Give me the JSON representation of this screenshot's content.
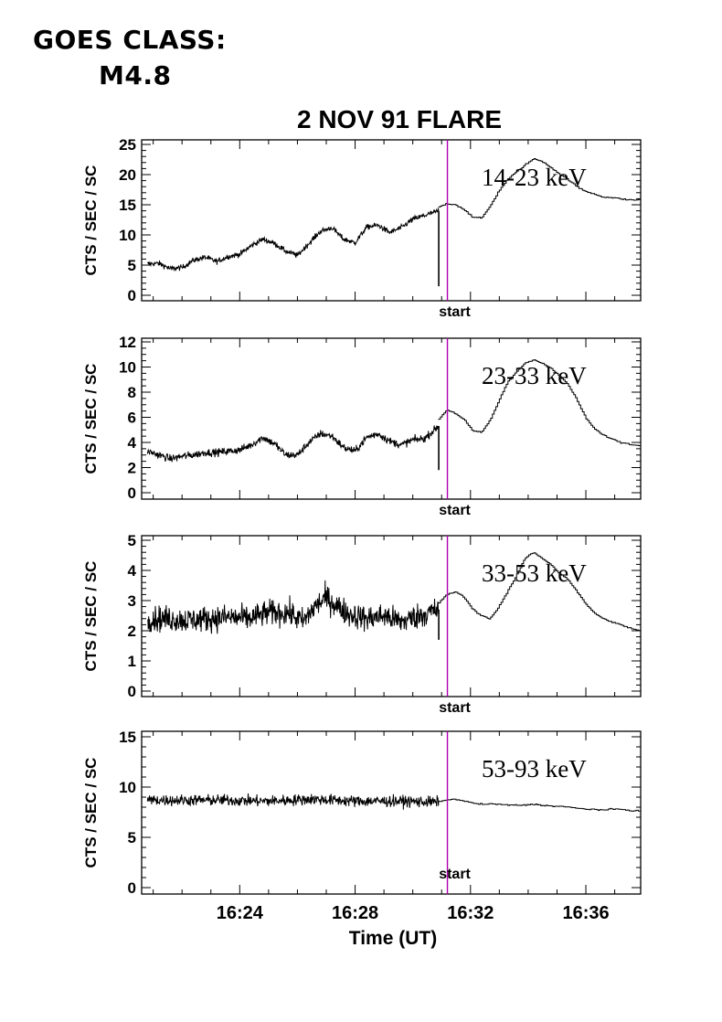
{
  "header": {
    "goes_line1": "GOES CLASS:",
    "goes_line2": "M4.8"
  },
  "colors": {
    "trace": "#000000",
    "start_marker": "#b200b2"
  },
  "chart_data": {
    "type": "line",
    "title": "2 NOV 91 FLARE",
    "xlabel": "Time (UT)",
    "ylabel": "CTS / SEC / SC",
    "x_unit": "minutes since 16:00 UT",
    "xlim": [
      20.6,
      37.9
    ],
    "x_tick_labels": [
      "16:24",
      "16:28",
      "16:32",
      "16:36"
    ],
    "x_tick_values": [
      24,
      28,
      32,
      36
    ],
    "x_minor_step": 1,
    "start_marker": {
      "x": 31.2,
      "label": "start"
    },
    "panels": [
      {
        "energy": "14-23 keV",
        "ylim": [
          0,
          25
        ],
        "yticks": [
          0,
          5,
          10,
          15,
          20,
          25
        ],
        "y_minor_step": 1,
        "spike": {
          "x": 30.9,
          "y_low": 1.5
        },
        "noisy_series": {
          "x_range": [
            20.8,
            30.9
          ],
          "noise": 0.45,
          "x": [
            20.8,
            21.2,
            21.6,
            22.0,
            22.4,
            22.8,
            23.2,
            23.6,
            24.0,
            24.4,
            24.8,
            25.2,
            25.6,
            26.0,
            26.4,
            26.8,
            27.2,
            27.6,
            28.0,
            28.4,
            28.8,
            29.2,
            29.6,
            30.0,
            30.4,
            30.9
          ],
          "y": [
            5.2,
            5.3,
            4.4,
            4.6,
            5.8,
            6.3,
            5.6,
            6.4,
            6.8,
            8.2,
            9.3,
            8.6,
            7.3,
            6.6,
            8.6,
            10.6,
            11.2,
            9.3,
            8.7,
            11.3,
            11.6,
            10.4,
            11.2,
            12.6,
            13.2,
            14.0
          ]
        },
        "step_series": {
          "x": [
            30.9,
            31.2,
            31.5,
            31.8,
            32.1,
            32.4,
            32.7,
            33.0,
            33.3,
            33.6,
            33.9,
            34.2,
            34.5,
            34.8,
            35.1,
            35.4,
            35.7,
            36.0,
            36.3,
            36.6,
            36.9,
            37.2,
            37.5,
            37.9
          ],
          "y": [
            14.6,
            15.2,
            15.0,
            14.2,
            12.9,
            12.8,
            14.8,
            17.3,
            19.2,
            20.4,
            21.6,
            22.6,
            22.2,
            21.2,
            20.1,
            19.2,
            18.0,
            17.2,
            16.8,
            16.3,
            16.2,
            16.0,
            15.8,
            15.8
          ]
        }
      },
      {
        "energy": "23-33 keV",
        "ylim": [
          0,
          12
        ],
        "yticks": [
          0,
          2,
          4,
          6,
          8,
          10,
          12
        ],
        "y_minor_step": 0.5,
        "spike": {
          "x": 30.9,
          "y_low": 1.8
        },
        "noisy_series": {
          "x_range": [
            20.8,
            30.9
          ],
          "noise": 0.3,
          "x": [
            20.8,
            21.2,
            21.6,
            22.0,
            22.4,
            22.8,
            23.2,
            23.6,
            24.0,
            24.4,
            24.8,
            25.2,
            25.6,
            26.0,
            26.4,
            26.8,
            27.2,
            27.6,
            28.0,
            28.4,
            28.8,
            29.2,
            29.6,
            30.0,
            30.4,
            30.9
          ],
          "y": [
            3.3,
            3.0,
            2.7,
            2.9,
            3.0,
            3.2,
            3.2,
            3.3,
            3.4,
            3.8,
            4.4,
            3.9,
            3.0,
            3.0,
            4.0,
            4.7,
            4.5,
            3.6,
            3.3,
            4.4,
            4.7,
            4.1,
            3.8,
            4.2,
            4.3,
            5.3
          ]
        },
        "step_series": {
          "x": [
            30.9,
            31.2,
            31.5,
            31.8,
            32.1,
            32.4,
            32.7,
            33.0,
            33.3,
            33.6,
            33.9,
            34.2,
            34.5,
            34.8,
            35.1,
            35.4,
            35.7,
            36.0,
            36.3,
            36.6,
            36.9,
            37.2,
            37.5,
            37.9
          ],
          "y": [
            5.8,
            6.6,
            6.3,
            5.8,
            4.9,
            4.8,
            5.8,
            7.3,
            8.8,
            9.6,
            10.3,
            10.6,
            10.3,
            9.9,
            9.3,
            8.6,
            7.4,
            6.0,
            5.1,
            4.6,
            4.3,
            4.0,
            3.9,
            3.7
          ]
        }
      },
      {
        "energy": "33-53 keV",
        "ylim": [
          0,
          5
        ],
        "yticks": [
          0,
          1,
          2,
          3,
          4,
          5
        ],
        "y_minor_step": 0.2,
        "spike": {
          "x": 30.9,
          "y_low": 1.7
        },
        "noisy_series": {
          "x_range": [
            20.8,
            30.9
          ],
          "noise": 0.42,
          "x": [
            20.8,
            21.5,
            22.2,
            22.9,
            23.6,
            24.3,
            25.0,
            25.7,
            26.2,
            26.6,
            27.0,
            27.4,
            27.8,
            28.4,
            29.0,
            29.6,
            30.2,
            30.9
          ],
          "y": [
            2.4,
            2.4,
            2.35,
            2.4,
            2.45,
            2.4,
            2.6,
            2.6,
            2.3,
            2.8,
            3.1,
            2.8,
            2.55,
            2.4,
            2.5,
            2.3,
            2.5,
            2.7
          ]
        },
        "step_series": {
          "x": [
            30.9,
            31.2,
            31.5,
            31.8,
            32.1,
            32.4,
            32.7,
            33.0,
            33.3,
            33.6,
            33.9,
            34.2,
            34.5,
            34.8,
            35.1,
            35.4,
            35.7,
            36.0,
            36.3,
            36.6,
            36.9,
            37.2,
            37.5,
            37.9
          ],
          "y": [
            2.9,
            3.2,
            3.3,
            3.1,
            2.7,
            2.5,
            2.4,
            2.8,
            3.3,
            3.8,
            4.4,
            4.6,
            4.4,
            4.2,
            3.9,
            3.7,
            3.3,
            2.9,
            2.6,
            2.4,
            2.3,
            2.2,
            2.1,
            2.0
          ]
        }
      },
      {
        "energy": "53-93 keV",
        "ylim": [
          0,
          15
        ],
        "yticks": [
          0,
          5,
          10,
          15
        ],
        "y_minor_step": 1,
        "spike": null,
        "noisy_series": {
          "x_range": [
            20.8,
            30.9
          ],
          "noise": 0.55,
          "x": [
            20.8,
            22.0,
            23.5,
            25.0,
            26.5,
            28.0,
            29.5,
            30.9
          ],
          "y": [
            8.7,
            8.7,
            8.7,
            8.6,
            8.8,
            8.6,
            8.6,
            8.5
          ]
        },
        "step_series": {
          "x": [
            30.9,
            31.2,
            31.5,
            31.8,
            32.1,
            32.4,
            32.7,
            33.0,
            33.3,
            33.6,
            33.9,
            34.2,
            34.5,
            34.8,
            35.1,
            35.4,
            35.7,
            36.0,
            36.3,
            36.6,
            36.9,
            37.2,
            37.5,
            37.9
          ],
          "y": [
            8.6,
            8.7,
            8.8,
            8.6,
            8.4,
            8.3,
            8.3,
            8.3,
            8.2,
            8.2,
            8.2,
            8.3,
            8.2,
            8.1,
            8.1,
            8.0,
            7.9,
            7.8,
            7.8,
            7.7,
            7.8,
            7.8,
            7.7,
            7.6
          ]
        }
      }
    ]
  }
}
